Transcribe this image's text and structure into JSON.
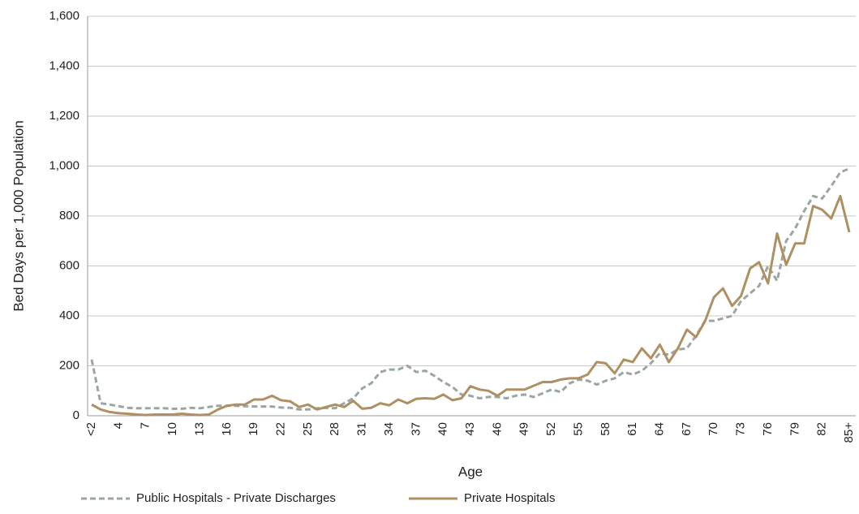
{
  "chart_data": {
    "type": "line",
    "xlabel": "Age",
    "ylabel": "Bed Days per 1,000 Population",
    "categories": [
      "<2",
      null,
      null,
      "4",
      null,
      null,
      "7",
      null,
      null,
      "10",
      null,
      null,
      "13",
      null,
      null,
      "16",
      null,
      null,
      "19",
      null,
      null,
      "22",
      null,
      null,
      "25",
      null,
      null,
      "28",
      null,
      null,
      "31",
      null,
      null,
      "34",
      null,
      null,
      "37",
      null,
      null,
      "40",
      null,
      null,
      "43",
      null,
      null,
      "46",
      null,
      null,
      "49",
      null,
      null,
      "52",
      null,
      null,
      "55",
      null,
      null,
      "58",
      null,
      null,
      "61",
      null,
      null,
      "64",
      null,
      null,
      "67",
      null,
      null,
      "70",
      null,
      null,
      "73",
      null,
      null,
      "76",
      null,
      null,
      "79",
      null,
      null,
      "82",
      null,
      null,
      "85+"
    ],
    "series": [
      {
        "name": "Public Hospitals - Private Discharges",
        "color": "#9aa7a0",
        "dashed": true,
        "values": [
          225,
          50,
          45,
          38,
          32,
          30,
          30,
          30,
          30,
          28,
          28,
          32,
          30,
          35,
          40,
          40,
          40,
          38,
          37,
          37,
          37,
          33,
          32,
          25,
          25,
          30,
          32,
          30,
          50,
          70,
          110,
          130,
          175,
          185,
          185,
          200,
          175,
          180,
          160,
          135,
          115,
          85,
          80,
          70,
          75,
          75,
          70,
          80,
          85,
          75,
          90,
          105,
          95,
          130,
          145,
          140,
          125,
          140,
          150,
          175,
          165,
          180,
          210,
          250,
          245,
          265,
          270,
          320,
          380,
          380,
          390,
          400,
          460,
          490,
          520,
          600,
          540,
          700,
          750,
          820,
          880,
          870,
          920,
          975,
          990
        ]
      },
      {
        "name": "Private Hospitals",
        "color": "#ae9063",
        "dashed": false,
        "values": [
          45,
          25,
          15,
          10,
          8,
          5,
          3,
          5,
          5,
          5,
          8,
          5,
          3,
          5,
          25,
          40,
          45,
          45,
          65,
          65,
          80,
          62,
          58,
          35,
          45,
          25,
          35,
          45,
          35,
          60,
          28,
          32,
          50,
          42,
          65,
          50,
          68,
          70,
          68,
          85,
          62,
          70,
          118,
          105,
          100,
          80,
          105,
          105,
          105,
          120,
          135,
          135,
          145,
          150,
          150,
          165,
          215,
          210,
          170,
          225,
          215,
          270,
          230,
          285,
          215,
          270,
          345,
          315,
          378,
          475,
          510,
          440,
          480,
          590,
          615,
          530,
          730,
          605,
          690,
          690,
          840,
          825,
          790,
          880,
          735
        ]
      }
    ],
    "ylim": [
      0,
      1600
    ],
    "yticks": [
      0,
      200,
      400,
      600,
      800,
      {
        "value": 1000,
        "label": "1,000"
      },
      {
        "value": 1200,
        "label": "1,200"
      },
      {
        "value": 1400,
        "label": "1,400"
      },
      {
        "value": 1600,
        "label": "1,600"
      }
    ],
    "grid": true
  }
}
